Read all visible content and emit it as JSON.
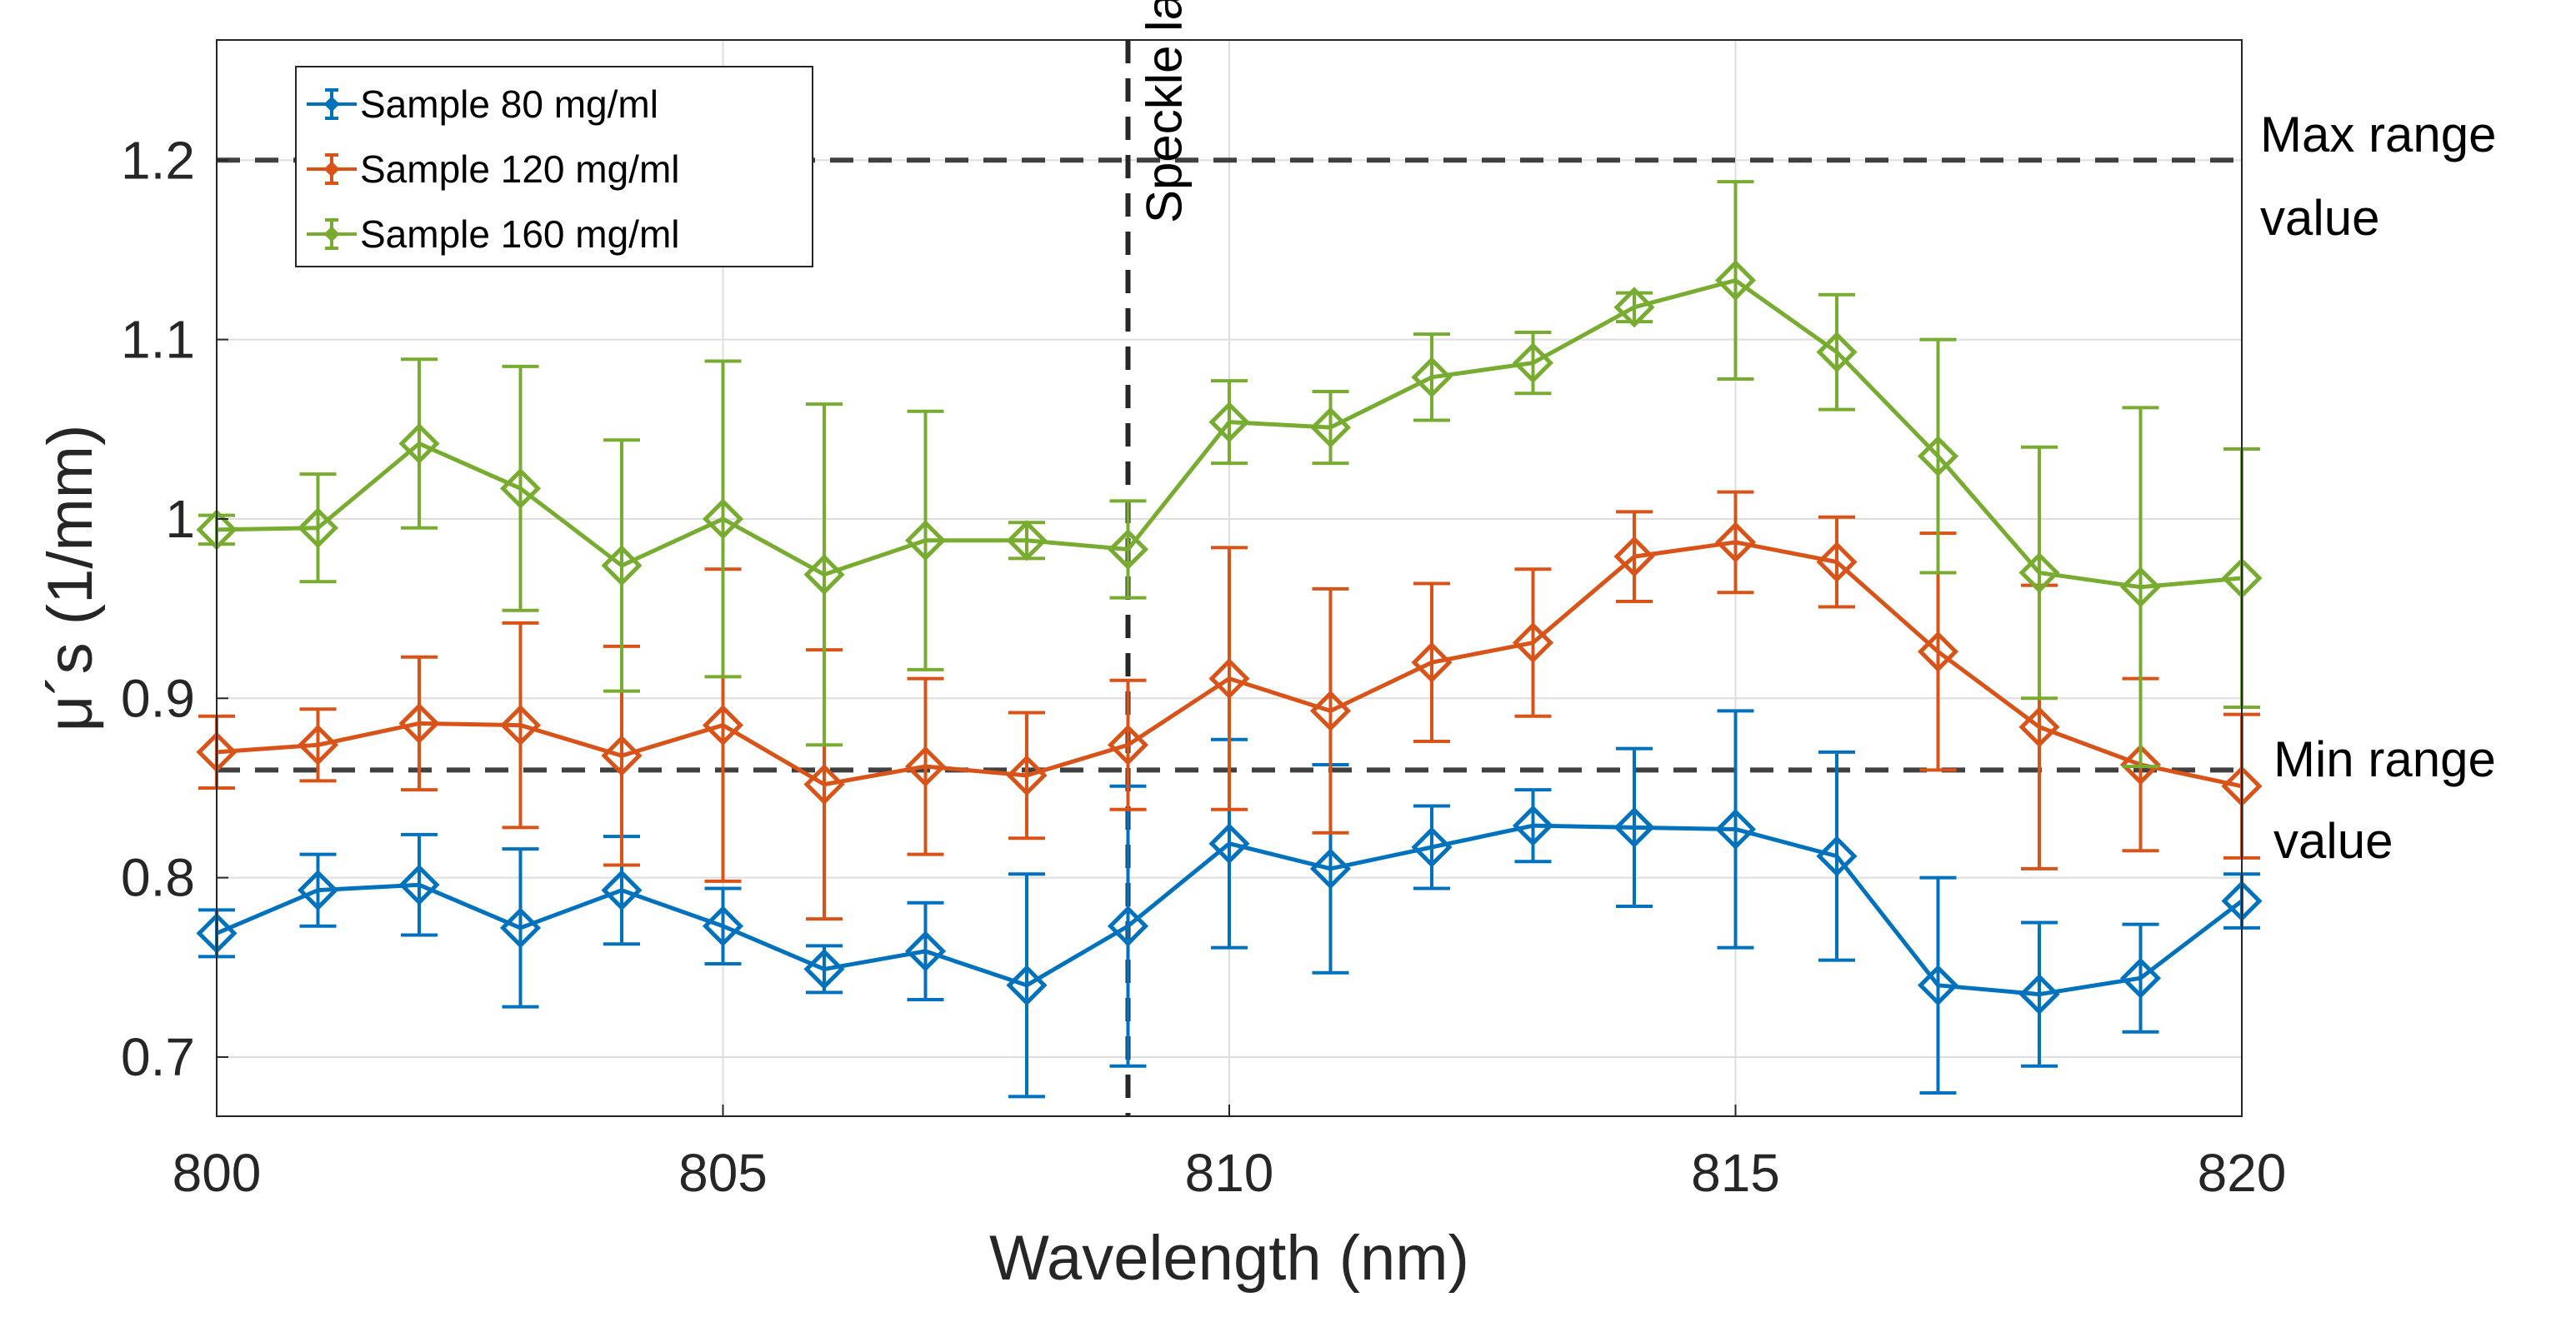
{
  "chart_data": {
    "type": "line",
    "title": "",
    "xlabel": "Wavelength (nm)",
    "ylabel": "μ´s (1/mm)",
    "xlim": [
      800,
      820
    ],
    "ylim": [
      0.667,
      1.267
    ],
    "xticks": [
      800,
      805,
      810,
      815,
      820
    ],
    "xtick_labels": [
      "800",
      "805",
      "810",
      "815",
      "820"
    ],
    "yticks": [
      0.7,
      0.8,
      0.9,
      1.0,
      1.1,
      1.2
    ],
    "ytick_labels": [
      "0.7",
      "0.8",
      "0.9",
      "1",
      "1.1",
      "1.2"
    ],
    "grid": true,
    "legend_position": "top-left",
    "x": [
      800,
      801,
      802,
      803,
      804,
      805,
      806,
      807,
      808,
      809,
      810,
      811,
      812,
      813,
      814,
      815,
      816,
      817,
      818,
      819,
      820
    ],
    "series": [
      {
        "name": "Sample 80 mg/ml",
        "color": "#0072BD",
        "values": [
          0.769,
          0.793,
          0.796,
          0.772,
          0.793,
          0.773,
          0.749,
          0.759,
          0.74,
          0.773,
          0.819,
          0.805,
          0.817,
          0.829,
          0.828,
          0.827,
          0.812,
          0.74,
          0.735,
          0.744,
          0.787
        ],
        "errors": [
          0.013,
          0.02,
          0.028,
          0.044,
          0.03,
          0.021,
          0.013,
          0.027,
          0.062,
          0.078,
          0.058,
          0.058,
          0.023,
          0.02,
          0.044,
          0.066,
          0.058,
          0.06,
          0.04,
          0.03,
          0.015
        ]
      },
      {
        "name": "Sample 120 mg/ml",
        "color": "#D95319",
        "values": [
          0.87,
          0.874,
          0.886,
          0.885,
          0.868,
          0.885,
          0.852,
          0.862,
          0.857,
          0.874,
          0.911,
          0.893,
          0.92,
          0.931,
          0.979,
          0.987,
          0.976,
          0.926,
          0.884,
          0.863,
          0.851
        ],
        "errors": [
          0.02,
          0.02,
          0.037,
          0.057,
          0.061,
          0.087,
          0.075,
          0.049,
          0.035,
          0.036,
          0.073,
          0.068,
          0.044,
          0.041,
          0.025,
          0.028,
          0.025,
          0.066,
          0.079,
          0.048,
          0.04
        ]
      },
      {
        "name": "Sample 160 mg/ml",
        "color": "#77AC30",
        "values": [
          0.994,
          0.995,
          1.042,
          1.017,
          0.974,
          1.0,
          0.969,
          0.988,
          0.988,
          0.983,
          1.054,
          1.051,
          1.079,
          1.087,
          1.118,
          1.133,
          1.093,
          1.035,
          0.97,
          0.962,
          0.967
        ],
        "errors": [
          0.008,
          0.03,
          0.047,
          0.068,
          0.07,
          0.088,
          0.095,
          0.072,
          0.01,
          0.027,
          0.023,
          0.02,
          0.024,
          0.017,
          0.008,
          0.055,
          0.032,
          0.065,
          0.07,
          0.1,
          0.072
        ]
      }
    ],
    "reference_lines": {
      "max_range": {
        "value": 1.2,
        "label_line1": "Max range",
        "label_line2": "value"
      },
      "min_range": {
        "value": 0.86,
        "label_line1": "Min range",
        "label_line2": "value"
      },
      "speckle_laser": {
        "value": 809,
        "label": "Speckle laser"
      }
    }
  }
}
